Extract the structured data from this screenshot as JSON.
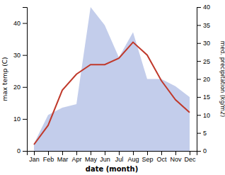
{
  "chart_data": {
    "type": "line",
    "categories": [
      "Jan",
      "Feb",
      "Mar",
      "Apr",
      "May",
      "Jun",
      "Jul",
      "Aug",
      "Sep",
      "Oct",
      "Nov",
      "Dec"
    ],
    "xlabel": "date (month)",
    "ylabel": "max temp (C)",
    "y2label": "med. precipitation (kg/m2)",
    "series": [
      {
        "type": "area",
        "axis": "y2",
        "color": "#b8c4e8",
        "values": [
          2,
          10,
          12,
          13,
          40,
          35,
          26,
          33,
          20,
          20,
          18,
          15
        ]
      },
      {
        "type": "line",
        "color": "#c0392b",
        "values": [
          2,
          8,
          19,
          24,
          27,
          27,
          29,
          34,
          30,
          22,
          16,
          12
        ]
      }
    ],
    "ylim": [
      0,
      45
    ],
    "yticks": [
      0,
      10,
      20,
      30,
      40
    ],
    "y2lim": [
      0,
      40
    ],
    "y2ticks": [
      0,
      5,
      10,
      15,
      20,
      25,
      30,
      35,
      40
    ]
  }
}
